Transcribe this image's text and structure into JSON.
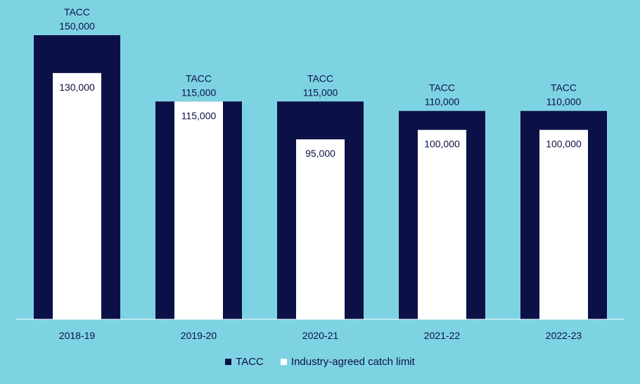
{
  "colors": {
    "background": "#7ed3e3",
    "tacc": "#0b1147",
    "limit": "#ffffff",
    "axis": "#ffffff",
    "text": "#0b1147"
  },
  "chart_data": {
    "type": "bar",
    "categories": [
      "2018-19",
      "2019-20",
      "2020-21",
      "2021-22",
      "2022-23"
    ],
    "series": [
      {
        "name": "TACC",
        "values": [
          150000,
          115000,
          115000,
          110000,
          110000
        ],
        "value_labels": [
          "150,000",
          "115,000",
          "115,000",
          "110,000",
          "110,000"
        ],
        "tag": "TACC"
      },
      {
        "name": "Industry-agreed catch limit",
        "values": [
          130000,
          115000,
          95000,
          100000,
          100000
        ],
        "value_labels": [
          "130,000",
          "115,000",
          "95,000",
          "100,000",
          "100,000"
        ]
      }
    ],
    "ylim": [
      0,
      150000
    ],
    "grid": false,
    "legend_position": "bottom-center",
    "title": "",
    "xlabel": "",
    "ylabel": ""
  }
}
